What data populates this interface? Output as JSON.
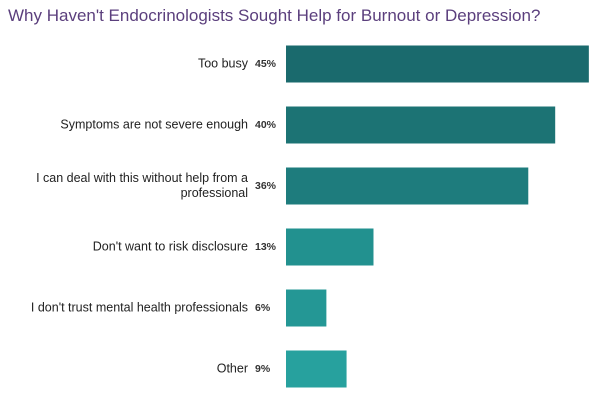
{
  "chart_data": {
    "type": "bar",
    "orientation": "horizontal",
    "title": "Why Haven't Endocrinologists Sought Help for Burnout or Depression?",
    "categories": [
      "Too busy",
      "Symptoms are not severe enough",
      "I can deal with this without help from a professional",
      "Don't want to risk disclosure",
      "I don't trust mental health professionals",
      "Other"
    ],
    "values": [
      45,
      40,
      36,
      13,
      6,
      9
    ],
    "value_labels": [
      "45%",
      "40%",
      "36%",
      "13%",
      "6%",
      "9%"
    ],
    "colors": [
      "#1a6a6d",
      "#1c7374",
      "#1e7c7d",
      "#22918f",
      "#249795",
      "#27a19e"
    ]
  }
}
